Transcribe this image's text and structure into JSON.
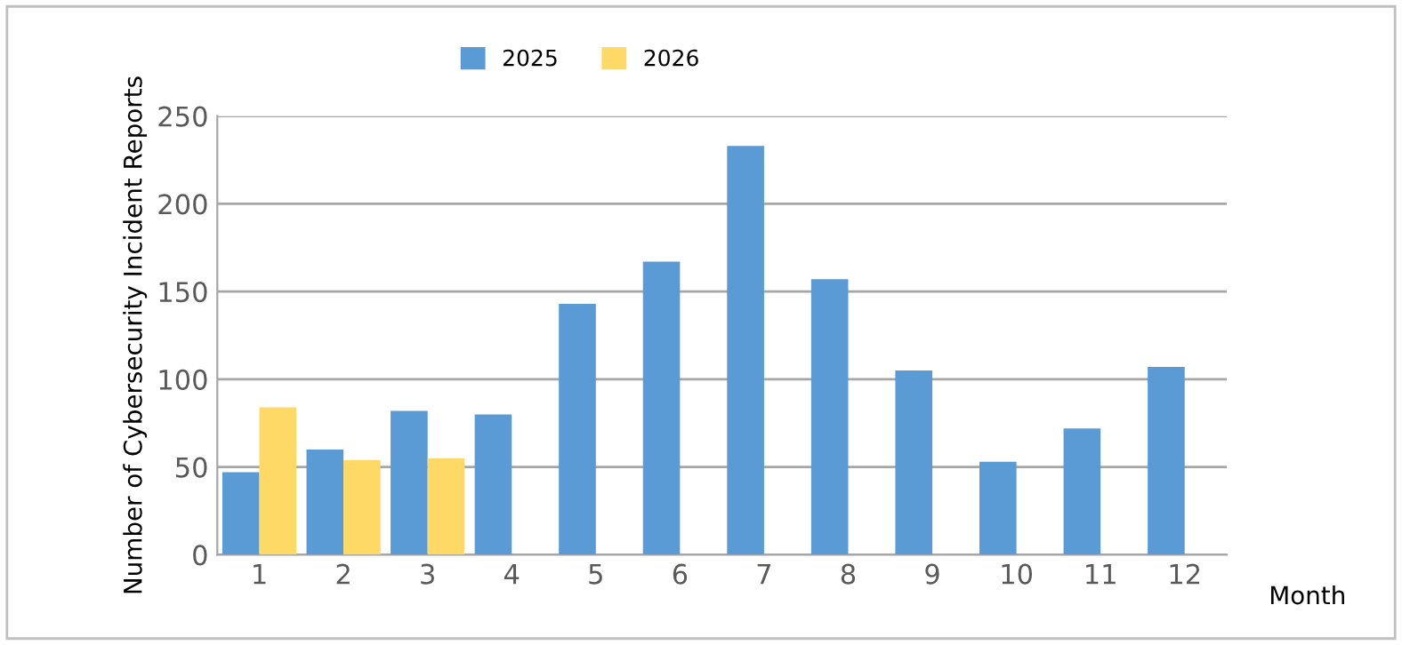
{
  "chart_data": {
    "type": "bar",
    "categories": [
      "1",
      "2",
      "3",
      "4",
      "5",
      "6",
      "7",
      "8",
      "9",
      "10",
      "11",
      "12"
    ],
    "series": [
      {
        "name": "2025",
        "color": "#5b9bd5",
        "values": [
          47,
          60,
          82,
          80,
          143,
          167,
          233,
          157,
          105,
          53,
          72,
          107
        ]
      },
      {
        "name": "2026",
        "color": "#ffd966",
        "values": [
          84,
          54,
          55,
          null,
          null,
          null,
          null,
          null,
          null,
          null,
          null,
          null
        ]
      }
    ],
    "xlabel": "Month",
    "ylabel": "Number of Cybersecurity Incident Reports",
    "ylim": [
      0,
      250
    ],
    "yticks": [
      0,
      50,
      100,
      150,
      200,
      250
    ],
    "grid": "y",
    "legend": "top"
  }
}
